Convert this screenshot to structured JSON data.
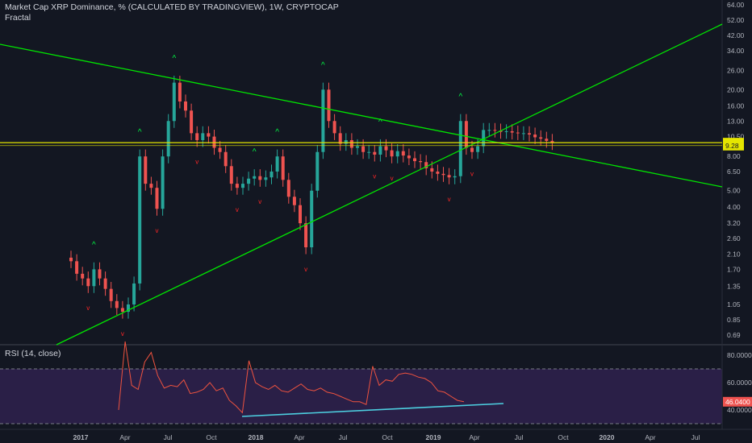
{
  "header": {
    "title": "Market Cap XRP Dominance, % (CALCULATED BY TRADINGVIEW), 1W, CRYPTOCAP",
    "indicator": "Fractal"
  },
  "rsi_panel": {
    "label": "RSI (14, close)"
  },
  "colors": {
    "background": "#131722",
    "up": "#26a69a",
    "down": "#ef5350",
    "trendline": "#00e600",
    "horizontal_line": "#e5e500",
    "rsi_line": "#f0533f",
    "rsi_band": "#2a1f47",
    "rsi_trend": "#4dd0e1",
    "fractal_up": "#00ff44",
    "fractal_down": "#ff2626"
  },
  "chart_data": [
    {
      "type": "candlestick",
      "title": "Market Cap XRP Dominance, % (CALCULATED BY TRADINGVIEW), 1W, CRYPTOCAP",
      "scale": "log",
      "x_ticks": [
        "2017",
        "Apr",
        "Jul",
        "Oct",
        "2018",
        "Apr",
        "Jul",
        "Oct",
        "2019",
        "Apr",
        "Jul",
        "Oct",
        "2020",
        "Apr",
        "Jul"
      ],
      "y_ticks": [
        "64.00",
        "52.00",
        "42.00",
        "34.00",
        "26.00",
        "20.00",
        "16.00",
        "13.00",
        "10.50",
        "8.00",
        "6.50",
        "5.00",
        "4.00",
        "3.20",
        "2.60",
        "2.10",
        "1.70",
        "1.35",
        "1.05",
        "0.85",
        "0.69"
      ],
      "price_badges": [
        {
          "value": "9.66",
          "color": "#e5e500"
        },
        {
          "value": "9.38",
          "color": "#e5e500"
        },
        {
          "value": "9.28",
          "color": "#e5e500"
        }
      ],
      "close_series": [
        1.9,
        1.6,
        1.5,
        1.35,
        1.7,
        1.5,
        1.3,
        1.1,
        1.0,
        0.95,
        1.05,
        1.4,
        8.0,
        5.5,
        5.2,
        3.9,
        8.0,
        13.0,
        22.0,
        17.0,
        15.0,
        11.0,
        10.0,
        11.0,
        10.5,
        9.0,
        8.5,
        7.0,
        5.5,
        5.2,
        5.5,
        5.9,
        6.1,
        5.8,
        6.0,
        6.5,
        8.0,
        5.8,
        4.6,
        4.1,
        3.2,
        2.3,
        5.0,
        8.5,
        20.0,
        13.0,
        11.0,
        9.5,
        10.0,
        9.0,
        9.2,
        8.5,
        8.5,
        8.2,
        9.2,
        8.7,
        8.0,
        8.6,
        8.1,
        7.8,
        7.5,
        7.4,
        6.8,
        6.5,
        6.3,
        6.2,
        6.0,
        6.1,
        13.0,
        9.0,
        8.5,
        9.2,
        11.5,
        11.5,
        11.4,
        11.2,
        11.3,
        11.1,
        11.0,
        11.0,
        10.8,
        10.4,
        10.2,
        9.9,
        9.6
      ]
    },
    {
      "type": "line",
      "title": "RSI (14, close)",
      "y_ticks": [
        "80.0000",
        "60.0000",
        "40.0000"
      ],
      "bands": [
        30,
        70
      ],
      "last_value": "46.0400",
      "values": [
        40,
        90,
        58,
        55,
        75,
        82,
        65,
        56,
        58,
        57,
        62,
        52,
        53,
        55,
        60,
        54,
        56,
        47,
        43,
        38,
        76,
        60,
        57,
        55,
        58,
        54,
        53,
        56,
        59,
        55,
        54,
        56,
        53,
        52,
        50,
        48,
        46,
        46,
        44,
        72,
        58,
        62,
        61,
        66,
        67,
        66,
        64,
        63,
        60,
        54,
        53,
        50,
        47,
        46
      ]
    }
  ]
}
